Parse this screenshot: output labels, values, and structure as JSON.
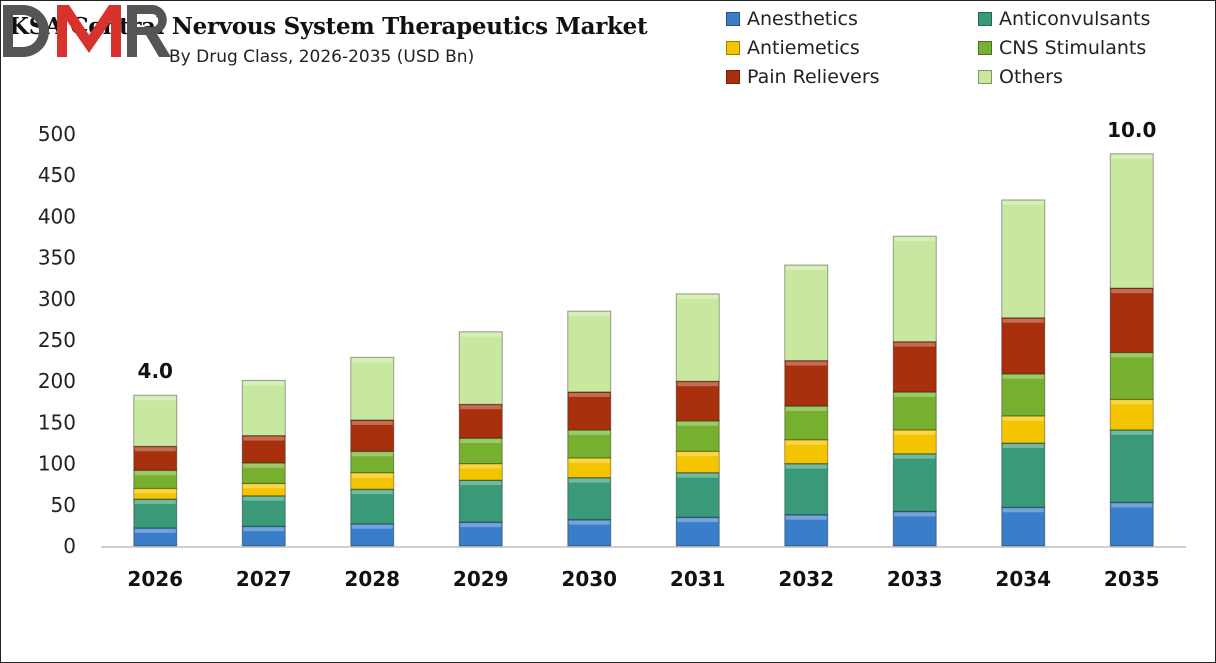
{
  "chart_data": {
    "type": "bar",
    "stacked": true,
    "title": "KSA Central Nervous System Therapeutics Market",
    "subtitle": "By Drug Class, 2026-2035 (USD Bn)",
    "categories": [
      "2026",
      "2027",
      "2028",
      "2029",
      "2030",
      "2031",
      "2032",
      "2033",
      "2034",
      "2035"
    ],
    "series": [
      {
        "name": "Anesthetics",
        "color": "#3a7dc9",
        "values": [
          22,
          24,
          27,
          29,
          32,
          35,
          38,
          42,
          47,
          53
        ]
      },
      {
        "name": "Anticonvulsants",
        "color": "#3a9a78",
        "values": [
          35,
          37,
          42,
          51,
          51,
          54,
          62,
          70,
          78,
          88
        ]
      },
      {
        "name": "Antiemetics",
        "color": "#f5c400",
        "values": [
          13,
          15,
          20,
          20,
          24,
          26,
          29,
          29,
          33,
          37
        ]
      },
      {
        "name": "CNS Stimulants",
        "color": "#76b02e",
        "values": [
          22,
          25,
          26,
          31,
          34,
          37,
          41,
          46,
          51,
          57
        ]
      },
      {
        "name": "Pain Relievers",
        "color": "#a8300c",
        "values": [
          29,
          33,
          38,
          41,
          46,
          48,
          55,
          61,
          68,
          78
        ]
      },
      {
        "name": "Others",
        "color": "#c8e8a0",
        "values": [
          62,
          67,
          76,
          88,
          98,
          106,
          116,
          128,
          143,
          163
        ]
      }
    ],
    "yticks": [
      "0",
      "50",
      "100",
      "150",
      "200",
      "250",
      "300",
      "350",
      "400",
      "450",
      "500"
    ],
    "ylim": [
      0,
      500
    ],
    "annotations": [
      {
        "category": "2026",
        "text": "4.0"
      },
      {
        "category": "2035",
        "text": "10.0"
      }
    ],
    "legend_position": "top-right",
    "grid": false
  },
  "logo": "DMR"
}
